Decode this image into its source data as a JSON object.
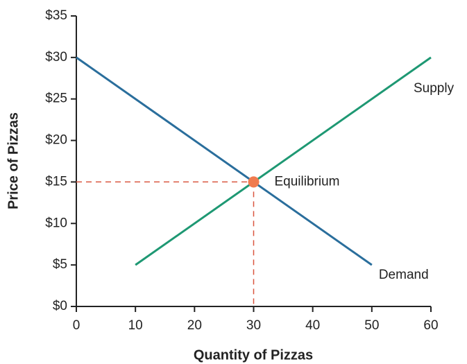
{
  "chart_data": {
    "type": "line",
    "x_label": "Quantity of Pizzas",
    "y_label": "Price of Pizzas",
    "xlim": [
      0,
      60
    ],
    "xticks": [
      0,
      10,
      20,
      30,
      40,
      50,
      60
    ],
    "ylim": [
      0,
      35
    ],
    "yticks": [
      {
        "value": 0,
        "label": "$0"
      },
      {
        "value": 5,
        "label": "$5"
      },
      {
        "value": 10,
        "label": "$10"
      },
      {
        "value": 15,
        "label": "$15"
      },
      {
        "value": 20,
        "label": "$20"
      },
      {
        "value": 25,
        "label": "$25"
      },
      {
        "value": 30,
        "label": "$30"
      },
      {
        "value": 35,
        "label": "$35"
      }
    ],
    "grid": false,
    "series": [
      {
        "name": "Demand",
        "color": "#2a6e9c",
        "x": [
          0,
          50
        ],
        "values": [
          30,
          5
        ]
      },
      {
        "name": "Supply",
        "color": "#1e9873",
        "x": [
          10,
          60
        ],
        "values": [
          5,
          30
        ]
      }
    ],
    "equilibrium": {
      "label": "Equilibrium",
      "x": 30,
      "y": 15,
      "color": "#f07b4f",
      "guide_color": "#d9553f"
    }
  }
}
